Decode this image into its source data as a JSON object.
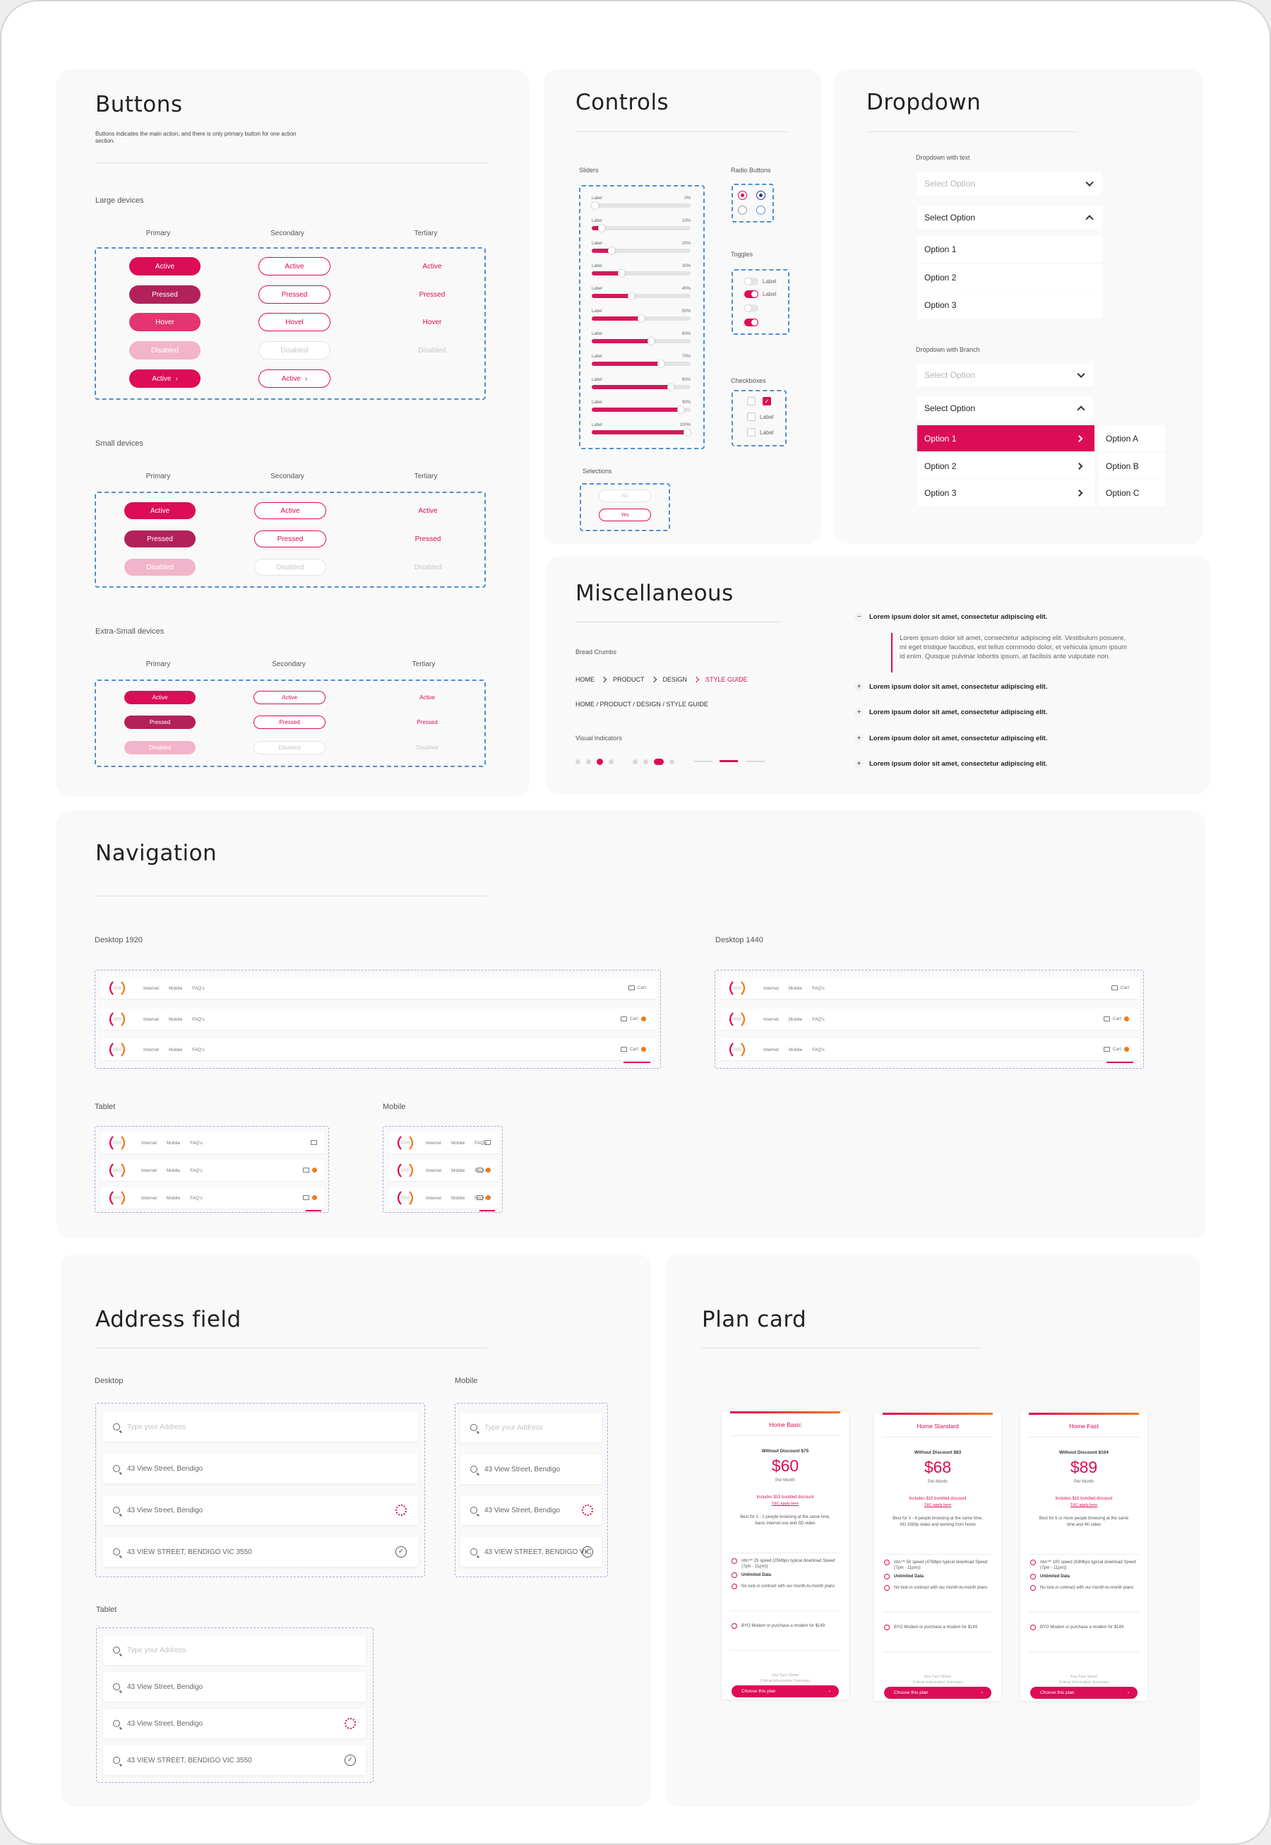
{
  "buttons": {
    "title": "Buttons",
    "desc": "Buttons indicates the main action, and there is only primary button for one action section.",
    "large": {
      "label": "Large devices"
    },
    "small": {
      "label": "Small devices"
    },
    "xsmall": {
      "label": "Extra-Small devices"
    },
    "cols": {
      "primary": "Primary",
      "secondary": "Secondary",
      "tertiary": "Tertiary"
    },
    "states": {
      "active": "Active",
      "pressed": "Pressed",
      "hover": "Hover",
      "hover_sec": "Hovel",
      "disabled": "Disabled"
    }
  },
  "controls": {
    "title": "Controls",
    "sliders_label": "Sliders",
    "slider_label": "Label",
    "sliders": [
      {
        "value": "0%",
        "level": 0.0
      },
      {
        "value": "10%",
        "level": 0.1
      },
      {
        "value": "20%",
        "level": 0.2
      },
      {
        "value": "30%",
        "level": 0.3
      },
      {
        "value": "40%",
        "level": 0.4
      },
      {
        "value": "50%",
        "level": 0.5
      },
      {
        "value": "60%",
        "level": 0.6
      },
      {
        "value": "70%",
        "level": 0.7
      },
      {
        "value": "80%",
        "level": 0.8
      },
      {
        "value": "90%",
        "level": 0.9
      },
      {
        "value": "100%",
        "level": 1.0
      }
    ],
    "radio_label": "Radio Buttons",
    "toggles_label": "Toggles",
    "toggle_text": "Label",
    "checkboxes_label": "Checkboxes",
    "checkbox_text": "Label",
    "selections_label": "Selections",
    "selections": [
      "No",
      "Yes"
    ]
  },
  "dropdown": {
    "title": "Dropdown",
    "with_text_label": "Dropdown with text",
    "with_branch_label": "Dropdown with Branch",
    "placeholder": "Select Option",
    "select_label": "Select Option",
    "options": [
      "Option 1",
      "Option 2",
      "Option 3"
    ],
    "branch_options": [
      "Option A",
      "Option B",
      "Option C"
    ]
  },
  "misc": {
    "title": "Miscellaneous",
    "breadcrumbs_label": "Bread Crumbs",
    "crumbs": [
      "HOME",
      "PRODUCT",
      "DESIGN",
      "STYLE GUIDE"
    ],
    "crumbs_slash": "HOME / PRODUCT / DESIGN / STYLE GUIDE",
    "visual_label": "Visual Indicators",
    "accordion_heading": "Lorem ipsum dolor sit amet, consectetur adipiscing elit.",
    "accordion_body": "Lorem ipsum dolor sit amet, consectetur adipiscing elit. Vestibulum posuere, mi eget tristique faucibus, est tellus commodo dolor, et vehicula ipsum ipsum id enim. Quisque pulvinar lobortis ipsum, at facilisis ante vulputate non.",
    "minus": "−",
    "plus": "+"
  },
  "navigation": {
    "title": "Navigation",
    "desktop1920": "Desktop 1920",
    "desktop1440": "Desktop 1440",
    "tablet": "Tablet",
    "mobile": "Mobile",
    "links": [
      "Internet",
      "Mobile",
      "FAQ's"
    ],
    "cart": "Cart"
  },
  "address": {
    "title": "Address field",
    "desktop": "Desktop",
    "mobile": "Mobile",
    "tablet": "Tablet",
    "placeholder": "Type your Address",
    "value": "43 View Street, Bendigo",
    "confirmed": "43 VIEW STREET, BENDIGO VIC 3550",
    "confirmed_mobile": "43 VIEW STREET, BENDIGO VIC"
  },
  "plan": {
    "title": "Plan card",
    "cta": "Choose this plan",
    "critical": "Key Fact Sheet\nCritical Information Summary",
    "cards": [
      {
        "name": "Home Basic",
        "without": "Without Discount $75",
        "price": "$60",
        "per": "Per Month",
        "included": "Includes $15 bundled discount",
        "tc": "T&C apply here",
        "desc": "Best for 1 - 2 people browsing at the same time, basic internet use and SD video",
        "f1": "nbn™ 25 speed (25Mbps typical download Speed (7pm - 11pm))",
        "f2": "Unlimited Data",
        "f3": "No lock-in contract with our month-to-month plans",
        "f4": "BYO Modem or purchase a modem for $149"
      },
      {
        "name": "Home Standard",
        "without": "Without Discount $83",
        "price": "$68",
        "per": "Per Month",
        "included": "Includes $15 bundled discount",
        "tc": "T&C apply here",
        "desc": "Best for 3 - 4 people browsing at the same time, HD 1080p video and working from home",
        "f1": "nbn™ 50 speed (47Mbps typical download Speed (7pm - 11pm))",
        "f2": "Unlimited Data",
        "f3": "No lock-in contract with our month-to-month plans",
        "f4": "BYO Modem or purchase a modem for $149"
      },
      {
        "name": "Home Fast",
        "without": "Without Discount $104",
        "price": "$89",
        "per": "Per Month",
        "included": "Includes $15 bundled discount",
        "tc": "T&C apply here",
        "desc": "Best for 5 or more people browsing at the same time and 4K video",
        "f1": "nbn™ 100 speed (83Mbps typical download Speed (7pm - 11pm))",
        "f2": "Unlimited Data",
        "f3": "No lock-in contract with our month-to-month plans",
        "f4": "BYO Modem or purchase a modem for $149"
      }
    ]
  },
  "colors": {
    "accent": "#dc0c56",
    "pressed": "#b2215a",
    "disabled": "#f2b4ca",
    "outline": "#4f8fd2",
    "badge": "#f07a1a"
  }
}
